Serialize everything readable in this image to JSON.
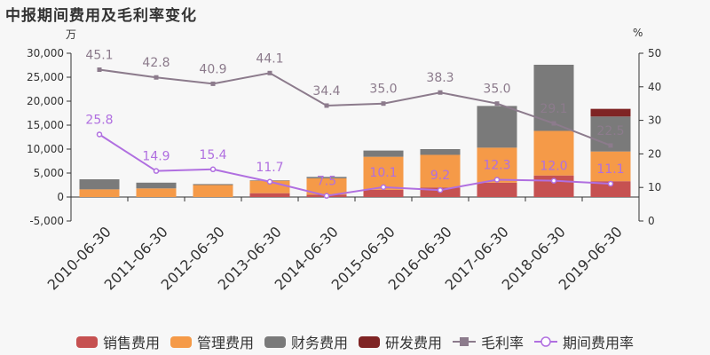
{
  "title": "中报期间费用及毛利率变化",
  "units": {
    "left": "万",
    "right": "%"
  },
  "chart_data": {
    "type": "bar",
    "stacked": true,
    "categories": [
      "2010-06-30",
      "2011-06-30",
      "2012-06-30",
      "2013-06-30",
      "2014-06-30",
      "2015-06-30",
      "2016-06-30",
      "2017-06-30",
      "2018-06-30",
      "2019-06-30"
    ],
    "series": [
      {
        "name": "销售费用",
        "type": "bar",
        "axis": "left",
        "color": "#c65151",
        "values": [
          0,
          0,
          0,
          800,
          500,
          1500,
          2000,
          3000,
          4500,
          3300
        ]
      },
      {
        "name": "管理费用",
        "type": "bar",
        "axis": "left",
        "color": "#f59a48",
        "values": [
          1600,
          1800,
          2500,
          2600,
          3400,
          6900,
          6800,
          7300,
          9300,
          6200
        ]
      },
      {
        "name": "财务费用",
        "type": "bar",
        "axis": "left",
        "color": "#7a7a7a",
        "values": [
          2100,
          1200,
          200,
          100,
          300,
          1300,
          1200,
          8700,
          13800,
          7300
        ]
      },
      {
        "name": "研发费用",
        "type": "bar",
        "axis": "left",
        "color": "#7f2424",
        "values": [
          0,
          0,
          0,
          0,
          0,
          0,
          0,
          0,
          0,
          1600
        ]
      },
      {
        "name": "毛利率",
        "type": "line",
        "axis": "right",
        "color": "#8c7b8c",
        "marker": "square",
        "values": [
          45.1,
          42.8,
          40.9,
          44.1,
          34.4,
          35.0,
          38.3,
          35.0,
          29.1,
          22.5
        ]
      },
      {
        "name": "期间费用率",
        "type": "line",
        "axis": "right",
        "color": "#b06fe0",
        "marker": "circle",
        "values": [
          25.8,
          14.9,
          15.4,
          11.7,
          7.5,
          10.1,
          9.2,
          12.3,
          12.0,
          11.1
        ]
      }
    ],
    "ylim_left": [
      -5000,
      30000
    ],
    "yticks_left": [
      "-5,000",
      "0",
      "5,000",
      "10,000",
      "15,000",
      "20,000",
      "25,000",
      "30,000"
    ],
    "ylim_right": [
      0,
      50
    ],
    "yticks_right": [
      "0",
      "10",
      "20",
      "30",
      "40",
      "50"
    ],
    "grid": false,
    "legend": "bottom"
  }
}
